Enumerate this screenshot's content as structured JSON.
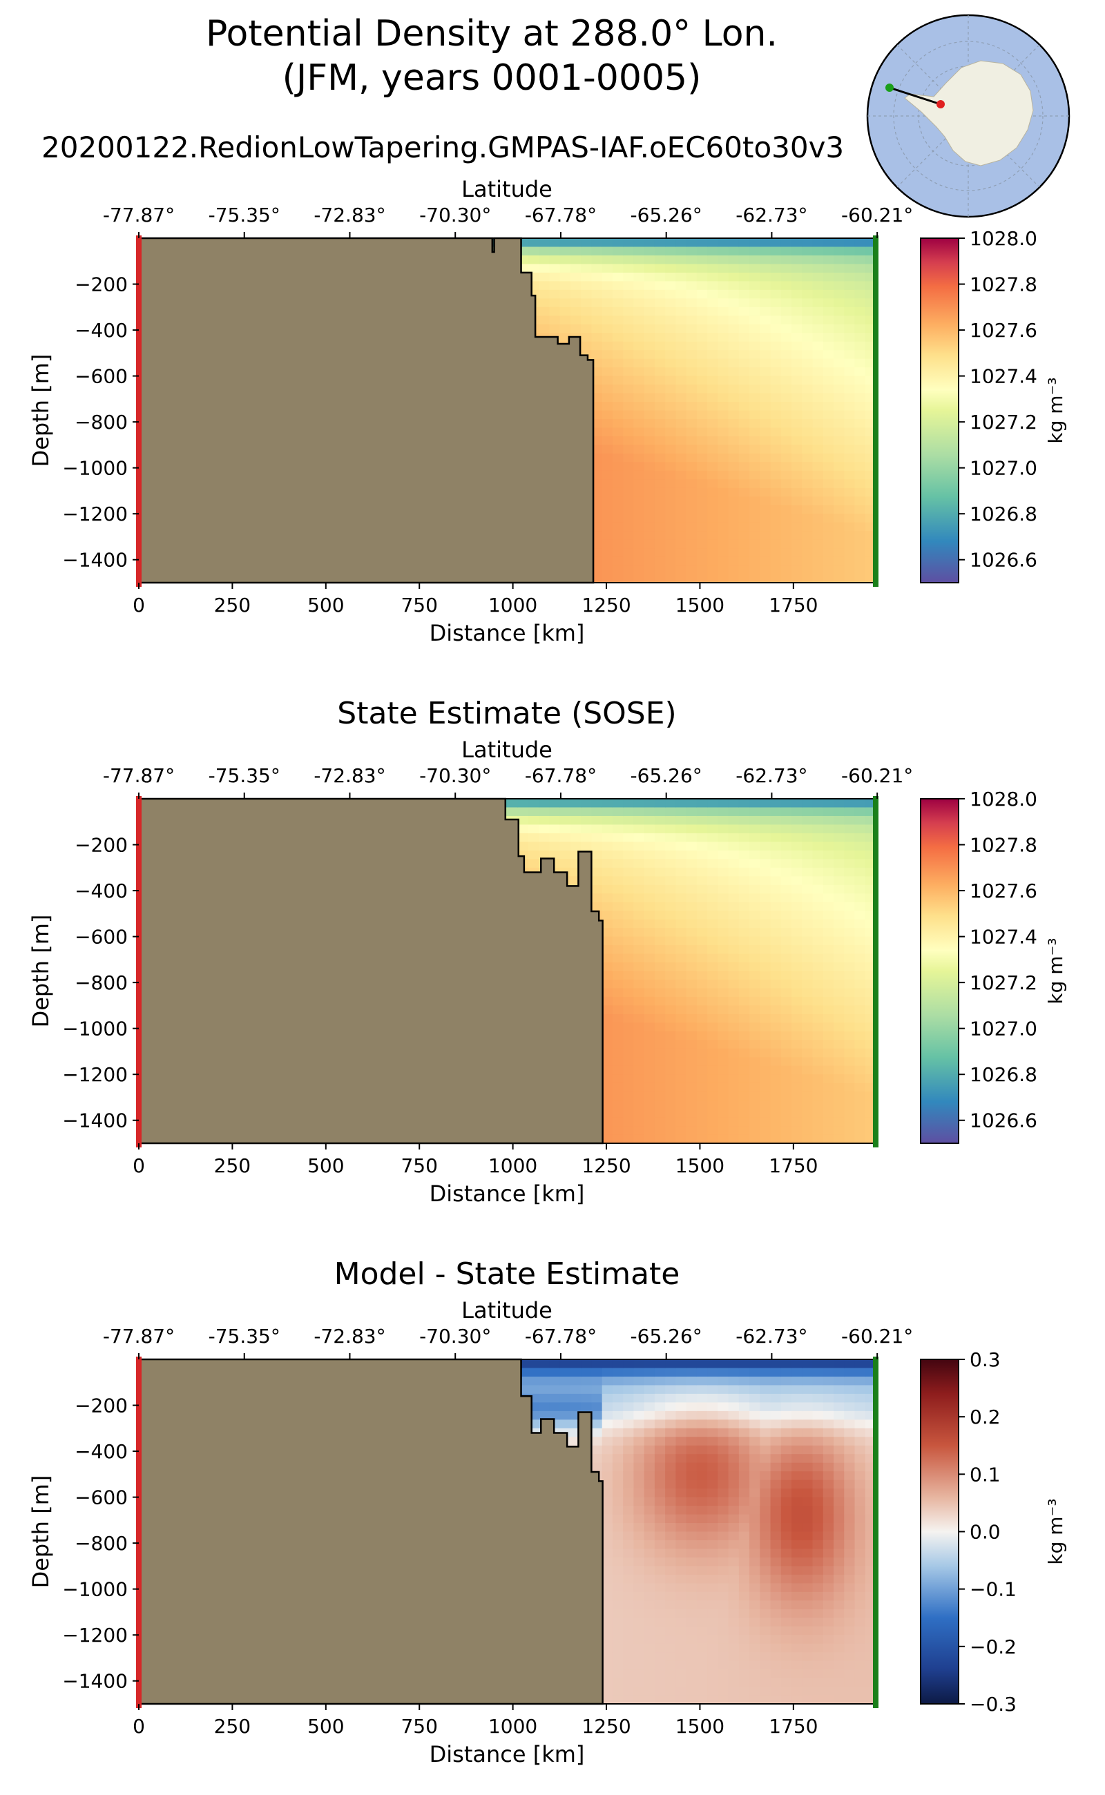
{
  "figure": {
    "title_line1": "Potential Density at 288.0° Lon.",
    "title_line2": "(JFM, years 0001-0005)",
    "run_name": "20200122.RedionLowTapering.GMPAS-IAF.oEC60to30v3",
    "inset_map_label": "Antarctic transect location map"
  },
  "colors": {
    "land": "#8f8266",
    "start_marker": "#d62728",
    "end_marker": "#1a7f1a",
    "map_ocean": "#a9c0e6",
    "map_land": "#f0efe2"
  },
  "chart_data": [
    {
      "id": "model",
      "type": "heatmap",
      "title": "",
      "xlabel": "Distance [km]",
      "ylabel": "Depth [m]",
      "top_xlabel": "Latitude",
      "xlim": [
        0,
        1970
      ],
      "ylim": [
        -1500,
        0
      ],
      "xticks": [
        0,
        250,
        500,
        750,
        1000,
        1250,
        1500,
        1750
      ],
      "xtick_labels": [
        "0",
        "250",
        "500",
        "750",
        "1000",
        "1250",
        "1500",
        "1750"
      ],
      "yticks": [
        -200,
        -400,
        -600,
        -800,
        -1000,
        -1200,
        -1400
      ],
      "ytick_labels": [
        "−200",
        "−400",
        "−600",
        "−800",
        "−1000",
        "−1200",
        "−1400"
      ],
      "top_ticks": [
        0,
        282,
        564,
        846,
        1128,
        1410,
        1692,
        1974
      ],
      "top_tick_labels": [
        "-77.87°",
        "-75.35°",
        "-72.83°",
        "-70.30°",
        "-67.78°",
        "-65.26°",
        "-62.73°",
        "-60.21°"
      ],
      "colormap": "Spectral_r",
      "colorbar": {
        "vmin": 1026.5,
        "vmax": 1028.0,
        "ticks": [
          1028.0,
          1027.8,
          1027.6,
          1027.4,
          1027.2,
          1027.0,
          1026.8,
          1026.6
        ],
        "tick_labels": [
          "1028.0",
          "1027.8",
          "1027.6",
          "1027.4",
          "1027.2",
          "1027.0",
          "1026.8",
          "1026.6"
        ],
        "label": "kg m⁻³"
      },
      "land_boundary": [
        [
          0,
          0
        ],
        [
          945,
          0
        ],
        [
          945,
          -60
        ],
        [
          950,
          -60
        ],
        [
          950,
          0
        ],
        [
          1022,
          0
        ],
        [
          1022,
          -150
        ],
        [
          1050,
          -150
        ],
        [
          1050,
          -250
        ],
        [
          1060,
          -250
        ],
        [
          1060,
          -430
        ],
        [
          1120,
          -430
        ],
        [
          1120,
          -460
        ],
        [
          1150,
          -460
        ],
        [
          1150,
          -430
        ],
        [
          1180,
          -430
        ],
        [
          1180,
          -510
        ],
        [
          1200,
          -510
        ],
        [
          1200,
          -530
        ],
        [
          1215,
          -530
        ],
        [
          1215,
          -1500
        ],
        [
          0,
          -1500
        ]
      ],
      "field": {
        "surface_value": 1026.55,
        "shelf_value": 1027.65,
        "deep_west": 1027.85,
        "deep_east": 1027.55,
        "east_surface": 1027.1
      }
    },
    {
      "id": "sose",
      "type": "heatmap",
      "title": "State Estimate (SOSE)",
      "xlabel": "Distance [km]",
      "ylabel": "Depth [m]",
      "top_xlabel": "Latitude",
      "xlim": [
        0,
        1970
      ],
      "ylim": [
        -1500,
        0
      ],
      "xticks": [
        0,
        250,
        500,
        750,
        1000,
        1250,
        1500,
        1750
      ],
      "xtick_labels": [
        "0",
        "250",
        "500",
        "750",
        "1000",
        "1250",
        "1500",
        "1750"
      ],
      "yticks": [
        -200,
        -400,
        -600,
        -800,
        -1000,
        -1200,
        -1400
      ],
      "ytick_labels": [
        "−200",
        "−400",
        "−600",
        "−800",
        "−1000",
        "−1200",
        "−1400"
      ],
      "top_ticks": [
        0,
        282,
        564,
        846,
        1128,
        1410,
        1692,
        1974
      ],
      "top_tick_labels": [
        "-77.87°",
        "-75.35°",
        "-72.83°",
        "-70.30°",
        "-67.78°",
        "-65.26°",
        "-62.73°",
        "-60.21°"
      ],
      "colormap": "Spectral_r",
      "colorbar": {
        "vmin": 1026.5,
        "vmax": 1028.0,
        "ticks": [
          1028.0,
          1027.8,
          1027.6,
          1027.4,
          1027.2,
          1027.0,
          1026.8,
          1026.6
        ],
        "tick_labels": [
          "1028.0",
          "1027.8",
          "1027.6",
          "1027.4",
          "1027.2",
          "1027.0",
          "1026.8",
          "1026.6"
        ],
        "label": "kg m⁻³"
      },
      "land_boundary": [
        [
          0,
          0
        ],
        [
          980,
          0
        ],
        [
          980,
          -90
        ],
        [
          1015,
          -90
        ],
        [
          1015,
          -250
        ],
        [
          1030,
          -250
        ],
        [
          1030,
          -320
        ],
        [
          1075,
          -320
        ],
        [
          1075,
          -260
        ],
        [
          1110,
          -260
        ],
        [
          1110,
          -320
        ],
        [
          1145,
          -320
        ],
        [
          1145,
          -380
        ],
        [
          1175,
          -380
        ],
        [
          1175,
          -230
        ],
        [
          1210,
          -230
        ],
        [
          1210,
          -490
        ],
        [
          1230,
          -490
        ],
        [
          1230,
          -530
        ],
        [
          1240,
          -530
        ],
        [
          1240,
          -1500
        ],
        [
          0,
          -1500
        ]
      ],
      "field": {
        "surface_value": 1026.6,
        "shelf_value": 1027.6,
        "deep_west": 1027.85,
        "deep_east": 1027.55,
        "east_surface": 1027.15
      }
    },
    {
      "id": "diff",
      "type": "heatmap",
      "title": "Model - State Estimate",
      "xlabel": "Distance [km]",
      "ylabel": "Depth [m]",
      "top_xlabel": "Latitude",
      "xlim": [
        0,
        1970
      ],
      "ylim": [
        -1500,
        0
      ],
      "xticks": [
        0,
        250,
        500,
        750,
        1000,
        1250,
        1500,
        1750
      ],
      "xtick_labels": [
        "0",
        "250",
        "500",
        "750",
        "1000",
        "1250",
        "1500",
        "1750"
      ],
      "yticks": [
        -200,
        -400,
        -600,
        -800,
        -1000,
        -1200,
        -1400
      ],
      "ytick_labels": [
        "−200",
        "−400",
        "−600",
        "−800",
        "−1000",
        "−1200",
        "−1400"
      ],
      "top_ticks": [
        0,
        282,
        564,
        846,
        1128,
        1410,
        1692,
        1974
      ],
      "top_tick_labels": [
        "-77.87°",
        "-75.35°",
        "-72.83°",
        "-70.30°",
        "-67.78°",
        "-65.26°",
        "-62.73°",
        "-60.21°"
      ],
      "colormap": "RdBu_r",
      "colorbar": {
        "vmin": -0.3,
        "vmax": 0.3,
        "ticks": [
          0.3,
          0.2,
          0.1,
          0.0,
          -0.1,
          -0.2,
          -0.3
        ],
        "tick_labels": [
          "0.3",
          "0.2",
          "0.1",
          "0.0",
          "−0.1",
          "−0.2",
          "−0.3"
        ],
        "label": "kg m⁻³"
      },
      "land_boundary": [
        [
          0,
          0
        ],
        [
          1022,
          0
        ],
        [
          1022,
          -160
        ],
        [
          1050,
          -160
        ],
        [
          1050,
          -320
        ],
        [
          1075,
          -320
        ],
        [
          1075,
          -260
        ],
        [
          1110,
          -260
        ],
        [
          1110,
          -320
        ],
        [
          1145,
          -320
        ],
        [
          1145,
          -380
        ],
        [
          1175,
          -380
        ],
        [
          1175,
          -230
        ],
        [
          1210,
          -230
        ],
        [
          1210,
          -490
        ],
        [
          1230,
          -490
        ],
        [
          1230,
          -530
        ],
        [
          1240,
          -530
        ],
        [
          1240,
          -1500
        ],
        [
          0,
          -1500
        ]
      ],
      "field": {
        "surface_value": -0.28,
        "deep_value": 0.05,
        "max_value": 0.12
      }
    }
  ]
}
